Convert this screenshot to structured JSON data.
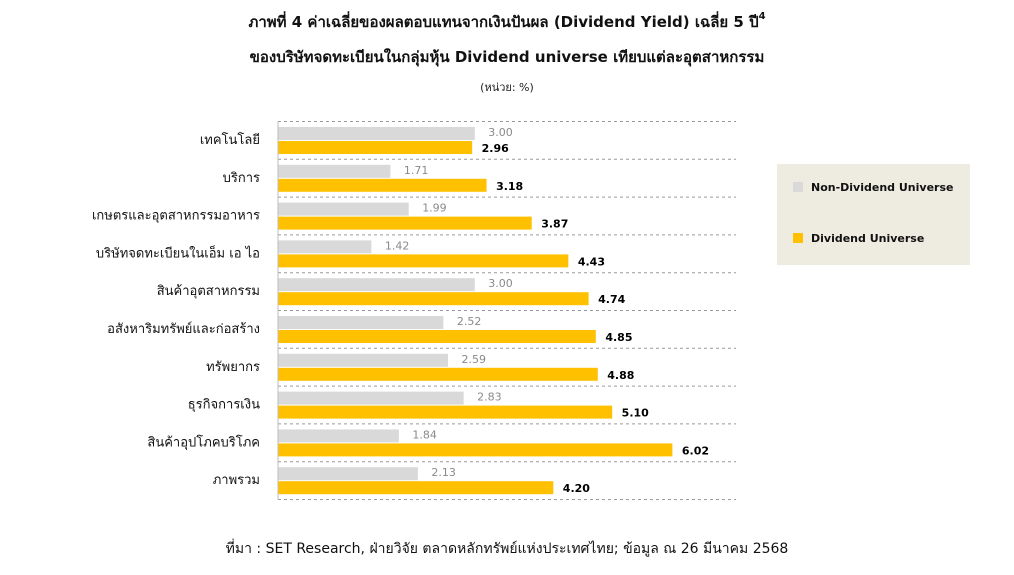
{
  "title_line1": "ภาพที่ 4 ค่าเฉลี่ยของผลตอบแทนจากเงินปันผล (Dividend Yield) เฉลี่ย 5 ปี",
  "title_sup": "4",
  "title_line2": "ของบริษัทจดทะเบียนในกลุ่มหุ้น Dividend universe เทียบแต่ละอุตสาหกรรม",
  "unit": "(หน่วย: %)",
  "source": "ที่มา : SET Research, ฝ่ายวิจัย ตลาดหลักทรัพย์แห่งประเทศไทย; ข้อมูล ณ 26 มีนาคม 2568",
  "colors": {
    "non_dividend": "#d9d9d9",
    "dividend": "#ffc000"
  },
  "chart_data": {
    "type": "bar",
    "orientation": "horizontal",
    "categories": [
      "เทคโนโลยี",
      "บริการ",
      "เกษตรและอุตสาหกรรมอาหาร",
      "บริษัทจดทะเบียนในเอ็ม เอ ไอ",
      "สินค้าอุตสาหกรรม",
      "อสังหาริมทรัพย์และก่อสร้าง",
      "ทรัพยากร",
      "ธุรกิจการเงิน",
      "สินค้าอุปโภคบริโภค",
      "ภาพรวม"
    ],
    "series": [
      {
        "name": "Non-Dividend Universe",
        "values": [
          3.0,
          1.71,
          1.99,
          1.42,
          3.0,
          2.52,
          2.59,
          2.83,
          1.84,
          2.13
        ],
        "labels": [
          "3.00",
          "1.71",
          "1.99",
          "1.42",
          "3.00",
          "2.52",
          "2.59",
          "2.83",
          "1.84",
          "2.13"
        ]
      },
      {
        "name": "Dividend Universe",
        "values": [
          2.96,
          3.18,
          3.87,
          4.43,
          4.74,
          4.85,
          4.88,
          5.1,
          6.02,
          4.2
        ],
        "labels": [
          "2.96",
          "3.18",
          "3.87",
          "4.43",
          "4.74",
          "4.85",
          "4.88",
          "5.10",
          "6.02",
          "4.20"
        ]
      }
    ],
    "xlim": [
      0,
      7
    ],
    "grid": true,
    "legend_position": "right"
  }
}
